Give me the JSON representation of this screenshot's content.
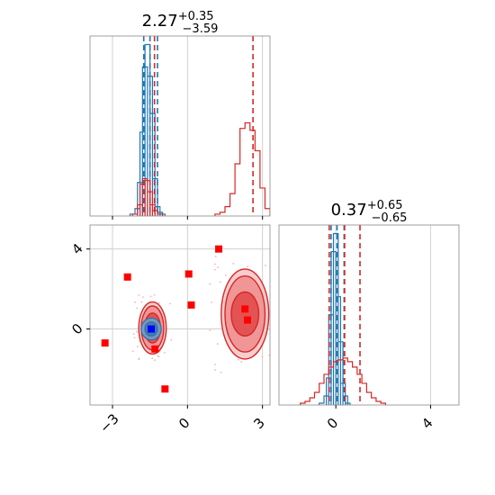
{
  "chart_data": {
    "type": "scatter",
    "subtype": "corner-plot",
    "grid": true,
    "colors": {
      "series_a": "#1f77b4",
      "series_b": "#d62728",
      "markers": "#ff0000",
      "truth": "#0000ff"
    },
    "panels": [
      {
        "id": "hist-param1",
        "kind": "histogram",
        "title": {
          "value": "2.27",
          "plus": "+0.35",
          "minus": "−3.59"
        },
        "xlim": [
          -3.9,
          3.3
        ],
        "series": [
          {
            "color": "#1f77b4",
            "bins": [
              [
                -2.2,
                0.01
              ],
              [
                -2.0,
                0.04
              ],
              [
                -1.9,
                0.18
              ],
              [
                -1.8,
                0.45
              ],
              [
                -1.7,
                0.8
              ],
              [
                -1.6,
                0.92
              ],
              [
                -1.5,
                0.75
              ],
              [
                -1.4,
                0.55
              ],
              [
                -1.3,
                0.2
              ],
              [
                -1.2,
                0.05
              ],
              [
                -1.1,
                0.02
              ],
              [
                -1.0,
                0.01
              ]
            ],
            "quantile_lines": [
              -1.75,
              -1.5,
              -1.2
            ]
          },
          {
            "color": "#d62728",
            "bins": [
              [
                -2.1,
                0.01
              ],
              [
                -1.9,
                0.06
              ],
              [
                -1.8,
                0.17
              ],
              [
                -1.7,
                0.2
              ],
              [
                -1.6,
                0.19
              ],
              [
                -1.5,
                0.13
              ],
              [
                -1.4,
                0.06
              ],
              [
                -1.3,
                0.03
              ],
              [
                -1.1,
                0.01
              ],
              [
                1.2,
                0.01
              ],
              [
                1.4,
                0.02
              ],
              [
                1.6,
                0.05
              ],
              [
                1.8,
                0.12
              ],
              [
                2.0,
                0.28
              ],
              [
                2.2,
                0.47
              ],
              [
                2.4,
                0.5
              ],
              [
                2.6,
                0.46
              ],
              [
                2.8,
                0.35
              ],
              [
                3.0,
                0.15
              ],
              [
                3.2,
                0.04
              ]
            ],
            "quantile_lines": [
              -1.32,
              2.62
            ]
          }
        ]
      },
      {
        "id": "hist-param2",
        "kind": "histogram",
        "title": {
          "value": "0.37",
          "plus": "+0.65",
          "minus": "−0.65"
        },
        "xlim": [
          -2.4,
          5.2
        ],
        "series": [
          {
            "color": "#1f77b4",
            "bins": [
              [
                -0.6,
                0.01
              ],
              [
                -0.4,
                0.05
              ],
              [
                -0.3,
                0.15
              ],
              [
                -0.2,
                0.5
              ],
              [
                -0.1,
                0.85
              ],
              [
                0.0,
                0.95
              ],
              [
                0.1,
                0.6
              ],
              [
                0.2,
                0.35
              ],
              [
                0.3,
                0.12
              ],
              [
                0.4,
                0.05
              ],
              [
                0.5,
                0.01
              ]
            ],
            "quantile_lines": [
              -0.2,
              0.05,
              0.35
            ]
          },
          {
            "color": "#d62728",
            "bins": [
              [
                -1.4,
                0.01
              ],
              [
                -1.2,
                0.02
              ],
              [
                -1.0,
                0.04
              ],
              [
                -0.8,
                0.07
              ],
              [
                -0.6,
                0.12
              ],
              [
                -0.4,
                0.17
              ],
              [
                -0.2,
                0.21
              ],
              [
                0.0,
                0.24
              ],
              [
                0.2,
                0.25
              ],
              [
                0.4,
                0.26
              ],
              [
                0.6,
                0.24
              ],
              [
                0.8,
                0.21
              ],
              [
                1.0,
                0.17
              ],
              [
                1.2,
                0.12
              ],
              [
                1.4,
                0.07
              ],
              [
                1.6,
                0.04
              ],
              [
                1.8,
                0.02
              ],
              [
                2.0,
                0.01
              ]
            ],
            "quantile_lines": [
              -0.28,
              0.37,
              1.02
            ]
          }
        ]
      },
      {
        "id": "joint",
        "kind": "joint",
        "xlim": [
          -3.9,
          3.3
        ],
        "ylim": [
          -3.8,
          5.2
        ],
        "xticks": [
          "−3",
          "0",
          "3"
        ],
        "xtick_values": [
          -3,
          0,
          3
        ],
        "yticks": [
          "0",
          "4"
        ],
        "ytick_values": [
          0,
          4
        ],
        "contours_b": [
          {
            "cx": -1.4,
            "cy": 0.05,
            "rx": [
              0.55,
              0.45,
              0.32
            ],
            "ry": [
              1.3,
              1.1,
              0.75
            ]
          },
          {
            "cx": 2.3,
            "cy": 0.75,
            "rx": [
              0.95,
              0.8,
              0.55
            ],
            "ry": [
              2.25,
              1.9,
              1.1
            ]
          }
        ],
        "contours_a": [
          {
            "cx": -1.45,
            "cy": 0.0,
            "rx": [
              0.4,
              0.25
            ],
            "ry": [
              0.55,
              0.35
            ]
          }
        ],
        "markers": [
          [
            -3.3,
            -0.7
          ],
          [
            -2.4,
            2.6
          ],
          [
            -1.3,
            -1.0
          ],
          [
            -0.9,
            -3.0
          ],
          [
            0.05,
            2.75
          ],
          [
            0.15,
            1.2
          ],
          [
            1.25,
            4.0
          ],
          [
            2.3,
            1.0
          ],
          [
            2.4,
            0.45
          ]
        ],
        "truth": [
          -1.45,
          0.0
        ]
      }
    ]
  }
}
